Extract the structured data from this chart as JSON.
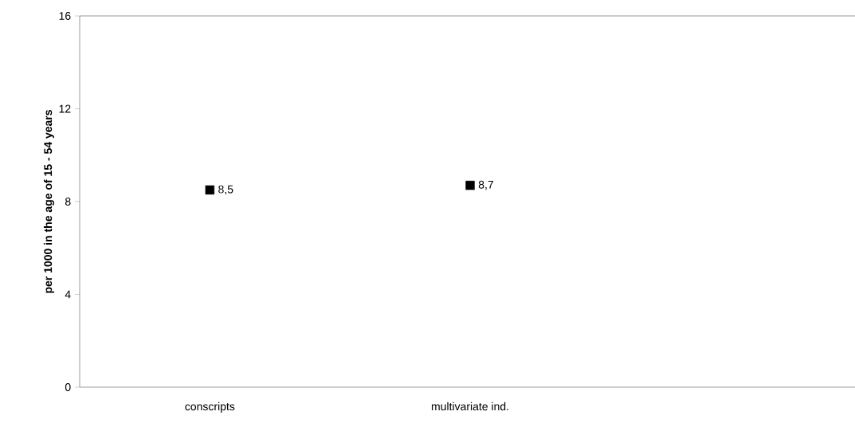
{
  "chart_data": {
    "type": "scatter",
    "ylabel": "per 1000 in the age of 15 - 54 years",
    "categories": [
      "conscripts",
      "multivariate ind.",
      null
    ],
    "values": [
      8.5,
      8.7,
      null
    ],
    "value_labels": [
      "8,5",
      "8,7",
      null
    ],
    "color": "#000000",
    "marker": "square",
    "ylim": [
      0,
      16
    ],
    "yticks": [
      0,
      4,
      8,
      12,
      16
    ]
  }
}
